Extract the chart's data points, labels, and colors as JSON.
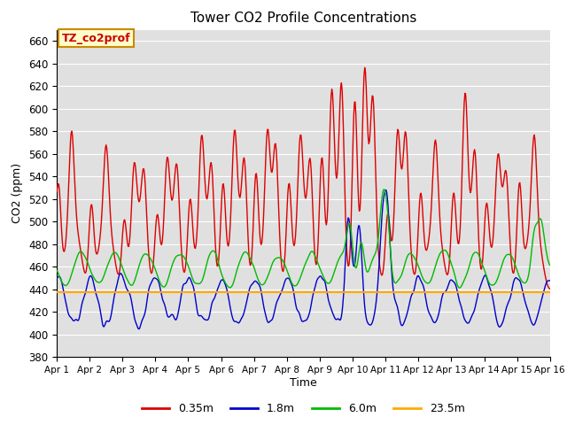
{
  "title": "Tower CO2 Profile Concentrations",
  "xlabel": "Time",
  "ylabel": "CO2 (ppm)",
  "ylim": [
    380,
    670
  ],
  "yticks": [
    380,
    400,
    420,
    440,
    460,
    480,
    500,
    520,
    540,
    560,
    580,
    600,
    620,
    640,
    660
  ],
  "annotation_text": "TZ_co2prof",
  "annotation_bbox_fc": "#ffffcc",
  "annotation_bbox_ec": "#cc8800",
  "series_colors": [
    "#dd0000",
    "#0000cc",
    "#00bb00",
    "#ffaa00"
  ],
  "series_lw": [
    1.0,
    1.0,
    1.0,
    1.5
  ],
  "n_points": 720,
  "days": 15,
  "bg_color": "#e0e0e0",
  "grid_color": "#ffffff",
  "xtick_labels": [
    "Apr 1",
    "Apr 2",
    "Apr 3",
    "Apr 4",
    "Apr 5",
    "Apr 6",
    "Apr 7",
    "Apr 8",
    "Apr 9",
    "Apr 10",
    "Apr 11",
    "Apr 12",
    "Apr 13",
    "Apr 14",
    "Apr 15",
    "Apr 16"
  ],
  "flat_line_value": 437.5,
  "legend_labels": [
    "0.35m",
    "1.8m",
    "6.0m",
    "23.5m"
  ],
  "legend_colors": [
    "#dd0000",
    "#0000cc",
    "#00bb00",
    "#ffaa00"
  ]
}
